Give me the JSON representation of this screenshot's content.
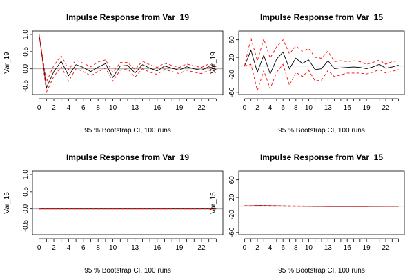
{
  "chart_data": [
    {
      "type": "line",
      "title": "Impulse Response from Var_19",
      "ylabel": "Var_19",
      "xlabel": "95 % Bootstrap CI,  100 runs",
      "ylim": [
        -0.75,
        1.1
      ],
      "yticks": [
        -0.5,
        0.0,
        0.5,
        1.0
      ],
      "ytick_labels": [
        "-0.5",
        "0.0",
        "0.5",
        "1.0"
      ],
      "xticks": [
        0,
        2,
        4,
        6,
        8,
        10,
        13,
        16,
        19,
        22
      ],
      "x": [
        0,
        1,
        2,
        3,
        4,
        5,
        6,
        7,
        8,
        9,
        10,
        11,
        12,
        13,
        14,
        15,
        16,
        17,
        18,
        19,
        20,
        21,
        22,
        23,
        24
      ],
      "reference_line": 0,
      "series": [
        {
          "style": "solid",
          "color": "#000000",
          "values": [
            1.0,
            -0.55,
            -0.08,
            0.22,
            -0.2,
            0.12,
            0.04,
            -0.08,
            0.05,
            0.15,
            -0.25,
            0.08,
            0.1,
            -0.12,
            0.12,
            0.02,
            -0.06,
            0.08,
            0.02,
            -0.04,
            0.06,
            0.0,
            -0.04,
            0.06,
            -0.02
          ]
        },
        {
          "style": "dashed",
          "color": "#ff0000",
          "values": [
            1.0,
            -0.38,
            0.1,
            0.38,
            -0.02,
            0.25,
            0.16,
            0.06,
            0.2,
            0.26,
            -0.1,
            0.18,
            0.18,
            -0.02,
            0.22,
            0.12,
            0.04,
            0.16,
            0.1,
            0.04,
            0.14,
            0.08,
            0.04,
            0.14,
            0.06
          ]
        },
        {
          "style": "dashed",
          "color": "#ff0000",
          "values": [
            1.0,
            -0.68,
            -0.22,
            0.06,
            -0.36,
            0.0,
            -0.08,
            -0.2,
            -0.08,
            0.02,
            -0.36,
            -0.04,
            0.0,
            -0.24,
            0.0,
            -0.1,
            -0.16,
            -0.02,
            -0.08,
            -0.14,
            -0.04,
            -0.1,
            -0.14,
            -0.04,
            -0.12
          ]
        }
      ]
    },
    {
      "type": "line",
      "title": "Impulse Response from Var_15",
      "ylabel": "Var_19",
      "xlabel": "95 % Bootstrap CI,  100 runs",
      "ylim": [
        -65,
        80
      ],
      "yticks": [
        -60,
        -20,
        20,
        60
      ],
      "ytick_labels": [
        "-60",
        "-20",
        "20",
        "60"
      ],
      "xticks": [
        0,
        2,
        4,
        6,
        8,
        10,
        13,
        16,
        19,
        22
      ],
      "x": [
        0,
        1,
        2,
        3,
        4,
        5,
        6,
        7,
        8,
        9,
        10,
        11,
        12,
        13,
        14,
        15,
        16,
        17,
        18,
        19,
        20,
        21,
        22,
        23,
        24
      ],
      "reference_line": 0,
      "series": [
        {
          "style": "solid",
          "color": "#000000",
          "values": [
            0,
            36,
            -14,
            25,
            -18,
            16,
            32,
            -6,
            18,
            6,
            14,
            -8,
            -6,
            12,
            -6,
            -4,
            -3,
            -2,
            -3,
            -6,
            -2,
            4,
            -5,
            -2,
            2
          ]
        },
        {
          "style": "dashed",
          "color": "#ff0000",
          "values": [
            0,
            64,
            12,
            62,
            18,
            44,
            60,
            28,
            46,
            34,
            40,
            20,
            18,
            34,
            10,
            12,
            10,
            12,
            10,
            4,
            8,
            14,
            4,
            10,
            12
          ]
        },
        {
          "style": "dashed",
          "color": "#ff0000",
          "values": [
            0,
            4,
            -56,
            -10,
            -52,
            -14,
            4,
            -44,
            -14,
            -24,
            -10,
            -34,
            -32,
            -10,
            -24,
            -20,
            -16,
            -16,
            -16,
            -18,
            -14,
            -8,
            -16,
            -12,
            -8
          ]
        }
      ]
    },
    {
      "type": "line",
      "title": "Impulse Response from Var_19",
      "ylabel": "Var_15",
      "xlabel": "95 % Bootstrap CI,  100 runs",
      "ylim": [
        -0.75,
        1.1
      ],
      "yticks": [
        -0.5,
        0.0,
        0.5,
        1.0
      ],
      "ytick_labels": [
        "-0.5",
        "0.0",
        "0.5",
        "1.0"
      ],
      "xticks": [
        0,
        2,
        4,
        6,
        8,
        10,
        13,
        16,
        19,
        22
      ],
      "x": [
        0,
        1,
        2,
        3,
        4,
        5,
        6,
        7,
        8,
        9,
        10,
        11,
        12,
        13,
        14,
        15,
        16,
        17,
        18,
        19,
        20,
        21,
        22,
        23,
        24
      ],
      "reference_line": 0,
      "series": [
        {
          "style": "solid",
          "color": "#000000",
          "values": [
            0,
            0,
            0,
            0,
            0,
            0,
            0,
            0,
            0,
            0,
            0,
            0,
            0,
            0,
            0,
            0,
            0,
            0,
            0,
            0,
            0,
            0,
            0,
            0,
            0
          ]
        },
        {
          "style": "dashed",
          "color": "#ff0000",
          "values": [
            0,
            0,
            0,
            0,
            0,
            0,
            0,
            0,
            0,
            0,
            0,
            0,
            0,
            0,
            0,
            0,
            0,
            0,
            0,
            0,
            0,
            0,
            0,
            0,
            0
          ]
        },
        {
          "style": "dashed",
          "color": "#ff0000",
          "values": [
            0,
            0,
            0,
            0,
            0,
            0,
            0,
            0,
            0,
            0,
            0,
            0,
            0,
            0,
            0,
            0,
            0,
            0,
            0,
            0,
            0,
            0,
            0,
            0,
            0
          ]
        }
      ]
    },
    {
      "type": "line",
      "title": "Impulse Response from Var_15",
      "ylabel": "Var_15",
      "xlabel": "95 % Bootstrap CI,  100 runs",
      "ylim": [
        -65,
        80
      ],
      "yticks": [
        -60,
        -20,
        20,
        60
      ],
      "ytick_labels": [
        "-60",
        "-20",
        "20",
        "60"
      ],
      "xticks": [
        0,
        2,
        4,
        6,
        8,
        10,
        13,
        16,
        19,
        22
      ],
      "x": [
        0,
        1,
        2,
        3,
        4,
        5,
        6,
        7,
        8,
        9,
        10,
        11,
        12,
        13,
        14,
        15,
        16,
        17,
        18,
        19,
        20,
        21,
        22,
        23,
        24
      ],
      "reference_line": 0,
      "series": [
        {
          "style": "solid",
          "color": "#000000",
          "values": [
            1.0,
            0.8,
            1.4,
            1.2,
            1.0,
            0.9,
            0.6,
            0.4,
            0.3,
            0.2,
            0.0,
            -0.2,
            -0.3,
            -0.4,
            -0.4,
            -0.5,
            -0.5,
            -0.5,
            -0.4,
            -0.4,
            -0.3,
            -0.3,
            -0.2,
            -0.2,
            -0.2
          ]
        },
        {
          "style": "dashed",
          "color": "#ff0000",
          "values": [
            1.5,
            1.4,
            2.2,
            2.0,
            1.8,
            1.6,
            1.2,
            1.0,
            0.8,
            0.6,
            0.4,
            0.2,
            0.1,
            0.0,
            0.0,
            0.0,
            0.0,
            0.0,
            0.0,
            0.0,
            0.0,
            0.0,
            0.0,
            0.0,
            0.0
          ]
        },
        {
          "style": "dashed",
          "color": "#ff0000",
          "values": [
            0.5,
            0.2,
            0.6,
            0.4,
            0.2,
            0.2,
            0.0,
            -0.2,
            -0.2,
            -0.2,
            -0.4,
            -0.6,
            -0.7,
            -0.8,
            -0.8,
            -0.9,
            -0.9,
            -0.9,
            -0.8,
            -0.8,
            -0.6,
            -0.6,
            -0.5,
            -0.5,
            -0.4
          ]
        }
      ]
    }
  ]
}
